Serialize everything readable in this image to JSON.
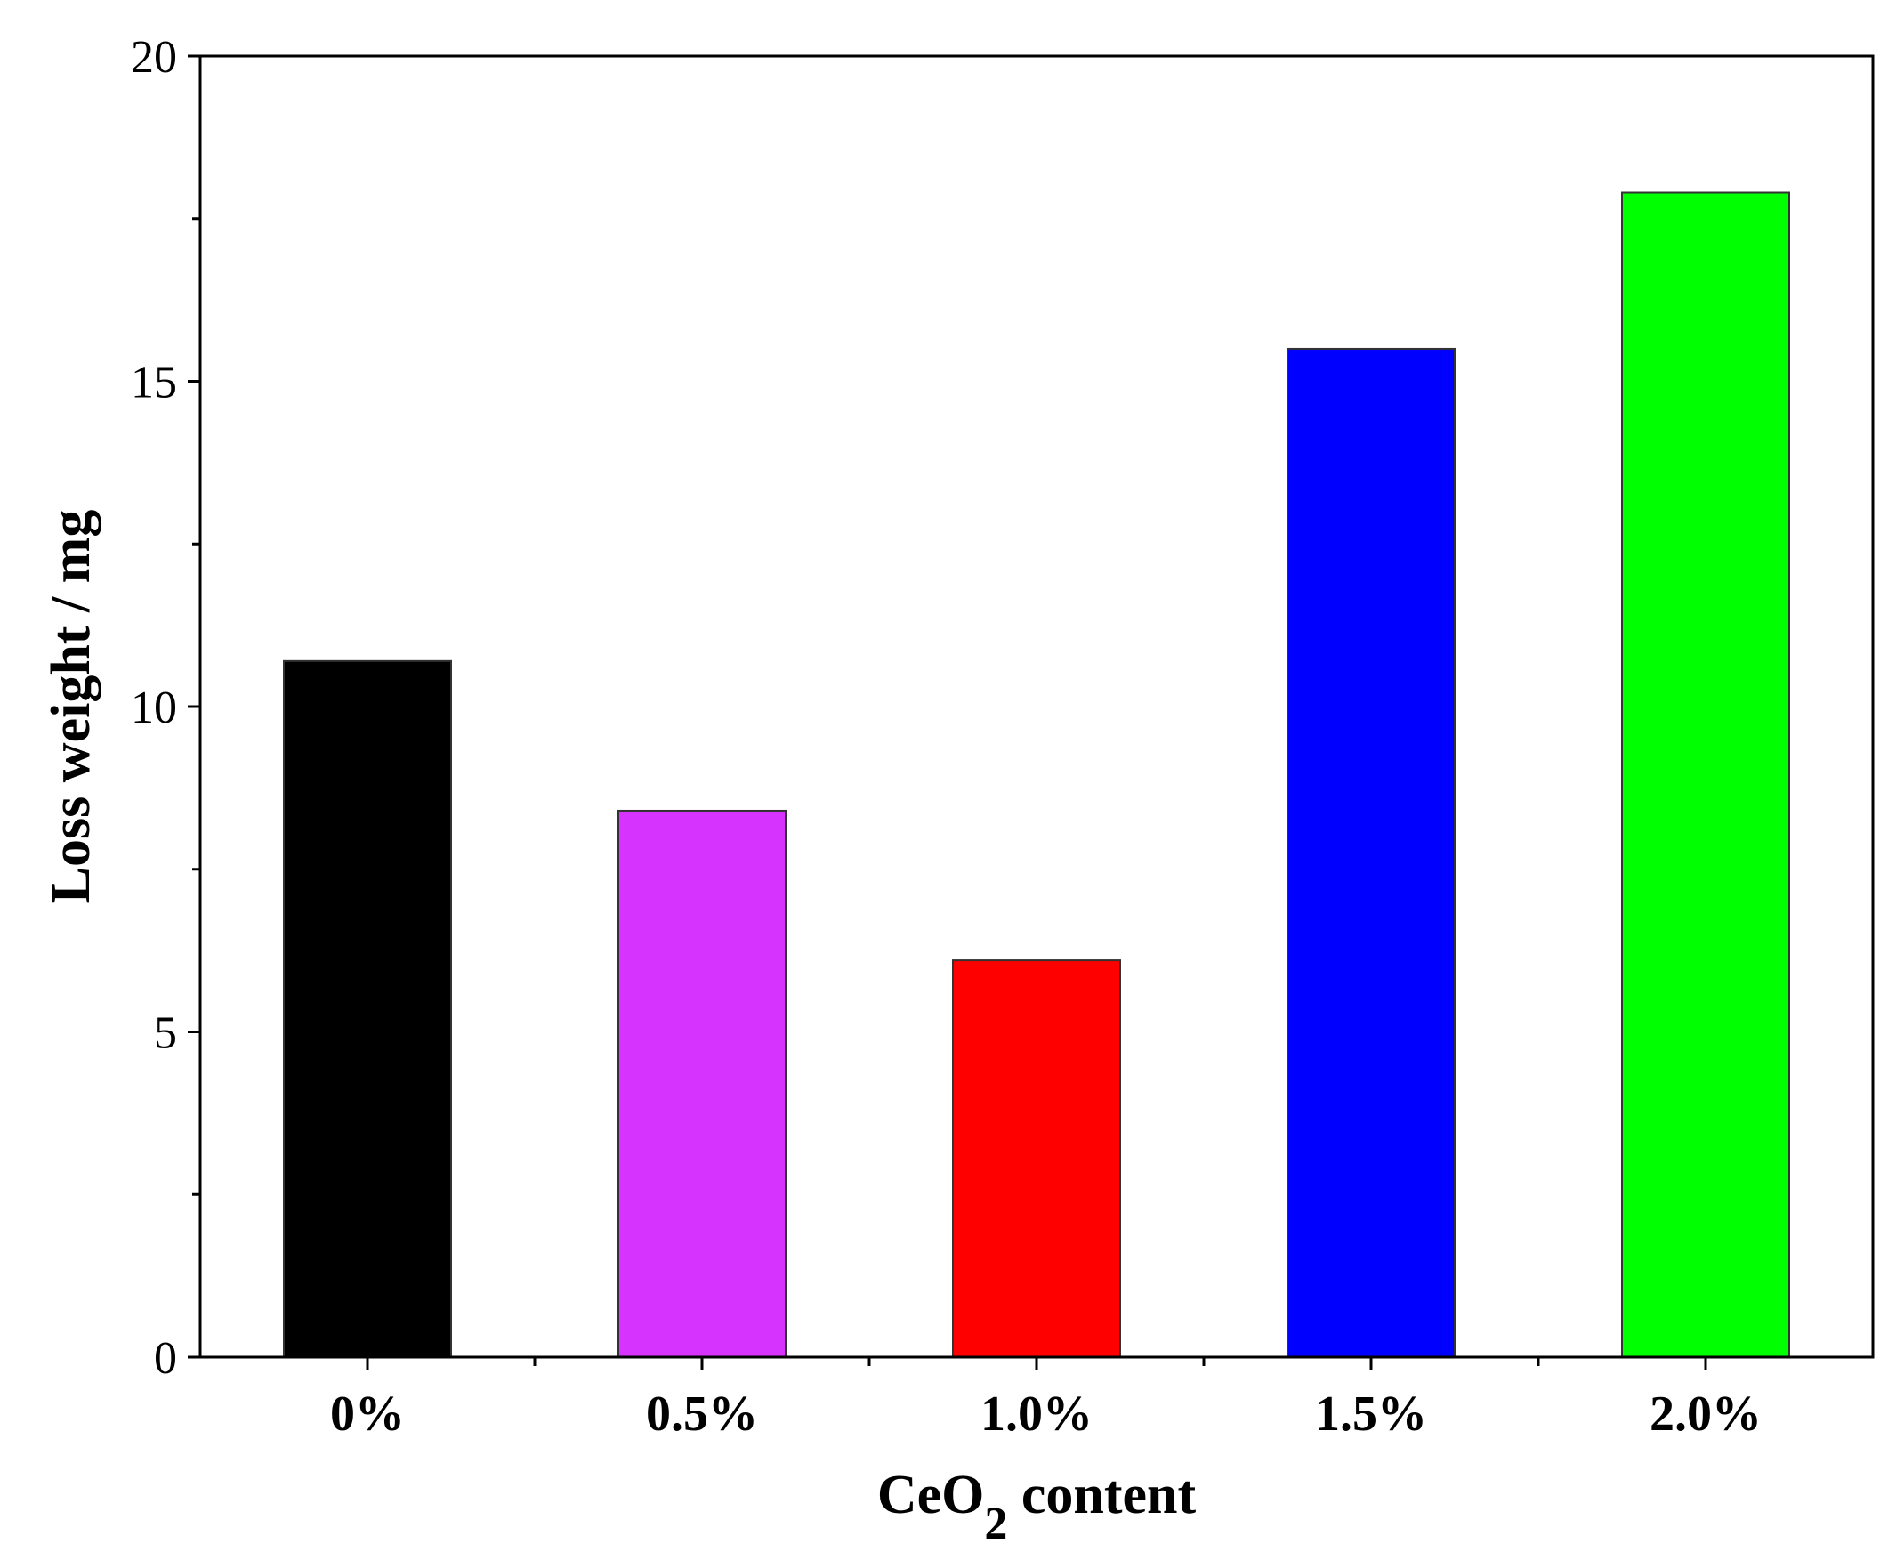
{
  "chart_data": {
    "type": "bar",
    "categories": [
      "0%",
      "0.5%",
      "1.0%",
      "1.5%",
      "2.0%"
    ],
    "values": [
      10.7,
      8.4,
      6.1,
      15.5,
      17.9
    ],
    "colors": [
      "#000000",
      "#d633ff",
      "#ff0000",
      "#0000ff",
      "#00ff00"
    ],
    "title": "",
    "xlabel": {
      "prefix": "CeO",
      "subscript": "2",
      "suffix": " content"
    },
    "ylabel": "Loss weight / mg",
    "ylim": [
      0,
      20
    ],
    "yticks": [
      0,
      5,
      10,
      15,
      20
    ],
    "ytick_labels": [
      "0",
      "5",
      "10",
      "15",
      "20"
    ],
    "grid": false,
    "legend": "none"
  }
}
